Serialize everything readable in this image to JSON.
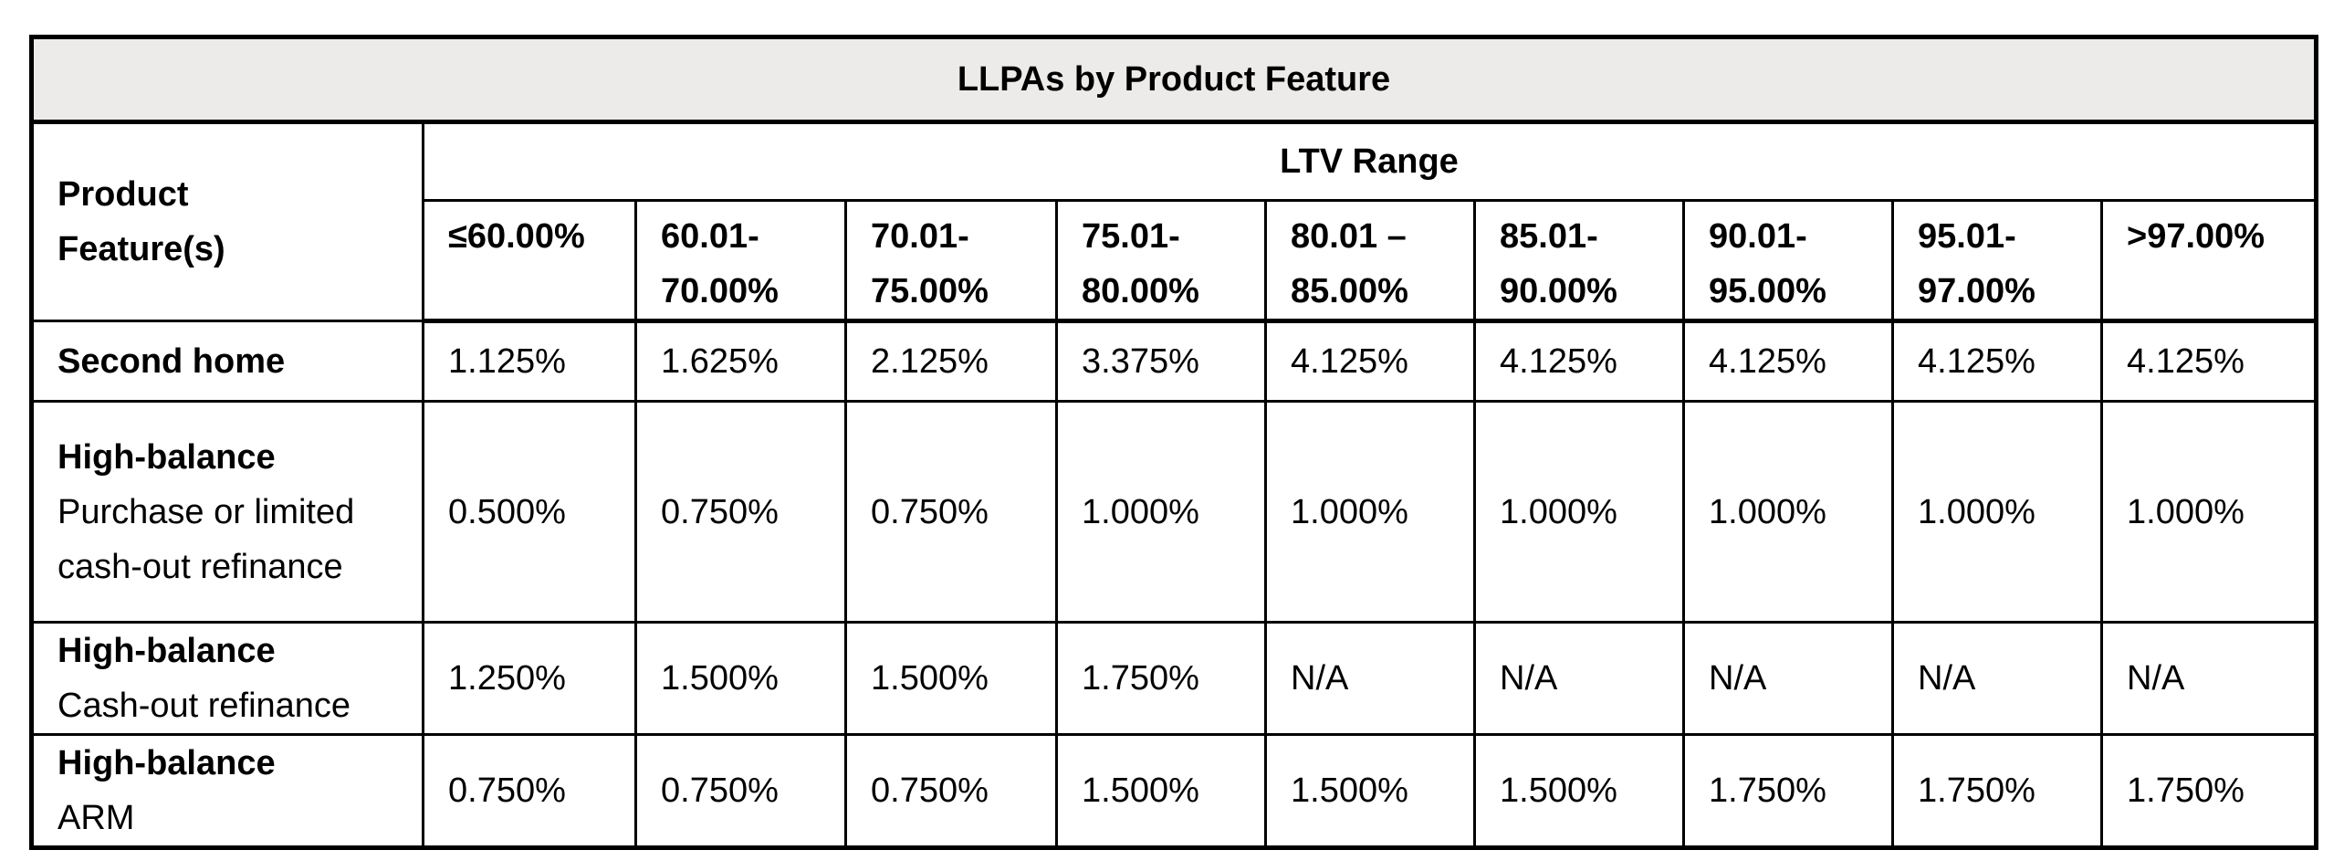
{
  "table": {
    "title": "LLPAs by Product Feature",
    "feature_header": "Product Feature(s)",
    "group_header": "LTV Range",
    "columns": [
      "≤60.00%",
      "60.01-70.00%",
      "70.01-75.00%",
      "75.01-80.00%",
      "80.01 – 85.00%",
      "85.01-90.00%",
      "90.01-95.00%",
      "95.01-97.00%",
      ">97.00%"
    ],
    "rows": [
      {
        "feature": "Second home",
        "sub": "",
        "values": [
          "1.125%",
          "1.625%",
          "2.125%",
          "3.375%",
          "4.125%",
          "4.125%",
          "4.125%",
          "4.125%",
          "4.125%"
        ]
      },
      {
        "feature": "High-balance",
        "sub": "Purchase or limited cash-out refinance",
        "values": [
          "0.500%",
          "0.750%",
          "0.750%",
          "1.000%",
          "1.000%",
          "1.000%",
          "1.000%",
          "1.000%",
          "1.000%"
        ]
      },
      {
        "feature": "High-balance",
        "sub": "Cash-out refinance",
        "values": [
          "1.250%",
          "1.500%",
          "1.500%",
          "1.750%",
          "N/A",
          "N/A",
          "N/A",
          "N/A",
          "N/A"
        ]
      },
      {
        "feature": "High-balance",
        "sub": "ARM",
        "values": [
          "0.750%",
          "0.750%",
          "0.750%",
          "1.500%",
          "1.500%",
          "1.500%",
          "1.750%",
          "1.750%",
          "1.750%"
        ]
      }
    ],
    "colors": {
      "title_background": "#edebe9",
      "border": "#000000"
    }
  }
}
